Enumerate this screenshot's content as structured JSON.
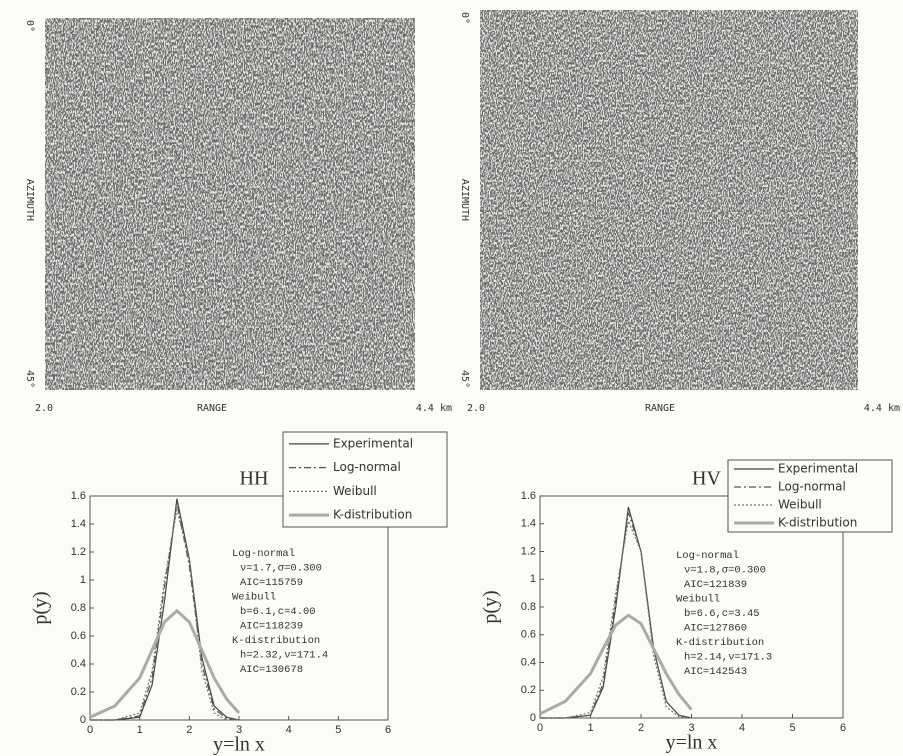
{
  "images": [
    {
      "azimuth_start": "0°",
      "azimuth_label": "AZIMUTH",
      "azimuth_end": "45°",
      "range_start": "2.0",
      "range_label": "RANGE",
      "range_end": "4.4 km"
    },
    {
      "azimuth_start": "0°",
      "azimuth_label": "AZIMUTH",
      "azimuth_end": "45°",
      "range_start": "2.0",
      "range_label": "RANGE",
      "range_end": "4.4 km"
    }
  ],
  "chart_data": [
    {
      "type": "line",
      "title": "HH",
      "x_label": "y=ln x",
      "y_label": "p(y)",
      "xlim": [
        0,
        6
      ],
      "ylim": [
        0,
        1.6
      ],
      "xticks": [
        0,
        1,
        2,
        3,
        4,
        5,
        6
      ],
      "yticks": [
        0,
        0.2,
        0.4,
        0.6,
        0.8,
        1,
        1.2,
        1.4,
        1.6
      ],
      "x": [
        0,
        0.5,
        1,
        1.25,
        1.5,
        1.75,
        2,
        2.25,
        2.5,
        2.75,
        3
      ],
      "series": [
        {
          "name": "Experimental",
          "color": "#444444",
          "style": "solid",
          "values": [
            0,
            0,
            0.02,
            0.25,
            0.85,
            1.58,
            1.15,
            0.45,
            0.1,
            0.02,
            0
          ]
        },
        {
          "name": "Log-normal",
          "color": "#555555",
          "style": "dashdot",
          "values": [
            0,
            0,
            0.03,
            0.3,
            0.95,
            1.55,
            1.1,
            0.4,
            0.08,
            0.01,
            0
          ]
        },
        {
          "name": "Weibull",
          "color": "#777777",
          "style": "dotted",
          "values": [
            0,
            0,
            0.05,
            0.35,
            1.0,
            1.5,
            1.15,
            0.35,
            0.05,
            0,
            0
          ]
        },
        {
          "name": "K-distribution",
          "color": "#aaaaaa",
          "style": "thick",
          "values": [
            0.02,
            0.1,
            0.3,
            0.5,
            0.7,
            0.78,
            0.7,
            0.5,
            0.3,
            0.15,
            0.05
          ]
        }
      ],
      "annotations": [
        "Log-normal",
        "ν=1.7,σ=0.300",
        "AIC=115759",
        "Weibull",
        "b=6.1,c=4.00",
        "AIC=118239",
        "K-distribution",
        "h=2.32,ν=171.4",
        "AIC=130678"
      ]
    },
    {
      "type": "line",
      "title": "HV",
      "x_label": "y=ln x",
      "y_label": "p(y)",
      "xlim": [
        0,
        6
      ],
      "ylim": [
        0,
        1.6
      ],
      "xticks": [
        0,
        1,
        2,
        3,
        4,
        5,
        6
      ],
      "yticks": [
        0,
        0.2,
        0.4,
        0.6,
        0.8,
        1,
        1.2,
        1.4,
        1.6
      ],
      "x": [
        0,
        0.5,
        1,
        1.25,
        1.5,
        1.75,
        2,
        2.25,
        2.5,
        2.75,
        3
      ],
      "series": [
        {
          "name": "Experimental",
          "color": "#444444",
          "style": "solid",
          "values": [
            0,
            0,
            0.02,
            0.22,
            0.8,
            1.52,
            1.2,
            0.5,
            0.12,
            0.02,
            0
          ]
        },
        {
          "name": "Log-normal",
          "color": "#555555",
          "style": "dashdot",
          "values": [
            0,
            0,
            0.02,
            0.25,
            0.85,
            1.48,
            1.2,
            0.5,
            0.12,
            0.02,
            0
          ]
        },
        {
          "name": "Weibull",
          "color": "#777777",
          "style": "dotted",
          "values": [
            0,
            0,
            0.04,
            0.3,
            0.9,
            1.42,
            1.2,
            0.45,
            0.08,
            0.01,
            0
          ]
        },
        {
          "name": "K-distribution",
          "color": "#aaaaaa",
          "style": "thick",
          "values": [
            0.03,
            0.12,
            0.32,
            0.5,
            0.67,
            0.74,
            0.68,
            0.5,
            0.32,
            0.17,
            0.06
          ]
        }
      ],
      "annotations": [
        "Log-normal",
        "ν=1.8,σ=0.300",
        "AIC=121839",
        "Weibull",
        "b=6.6,c=3.45",
        "AIC=127860",
        "K-distribution",
        "h=2.14,ν=171.3",
        "AIC=142543"
      ]
    }
  ]
}
